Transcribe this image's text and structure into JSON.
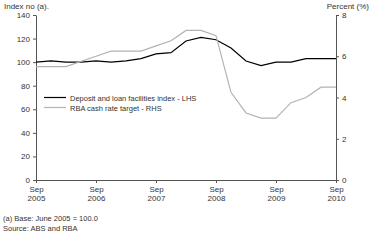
{
  "chart_data": {
    "type": "line",
    "y_label": "Index no (a).",
    "y2_label": "Percent (%)",
    "notes": [
      "(a) Base: June 2005 = 100.0",
      "Source: ABS and RBA"
    ],
    "categories": [
      "Sep 2005",
      null,
      null,
      null,
      "Sep 2006",
      null,
      null,
      null,
      "Sep 2007",
      null,
      null,
      null,
      "Sep 2008",
      null,
      null,
      null,
      "Sep 2009",
      null,
      null,
      null,
      "Sep 2010"
    ],
    "series": [
      {
        "name": "Deposit and loan facilities index - LHS",
        "color": "#000000",
        "values": [
          100,
          101,
          100,
          100,
          101,
          100,
          101,
          103,
          107,
          108,
          118,
          121,
          119,
          112,
          101,
          97,
          100,
          100,
          103,
          103,
          103
        ]
      },
      {
        "name": "RBA cash rate target - RHS",
        "color": "#b3b3b3",
        "axis": "y2",
        "values": [
          5.5,
          5.5,
          5.5,
          5.75,
          6.0,
          6.25,
          6.25,
          6.25,
          6.5,
          6.75,
          7.25,
          7.25,
          7.0,
          4.25,
          3.25,
          3.0,
          3.0,
          3.75,
          4.0,
          4.5,
          4.5
        ]
      }
    ],
    "ylim": [
      0,
      140
    ],
    "yticks": [
      0,
      20,
      40,
      60,
      80,
      100,
      120,
      140
    ],
    "y2lim": [
      0,
      8
    ],
    "y2ticks": [
      0,
      2,
      4,
      6,
      8
    ],
    "legend": "left",
    "grid": false
  }
}
